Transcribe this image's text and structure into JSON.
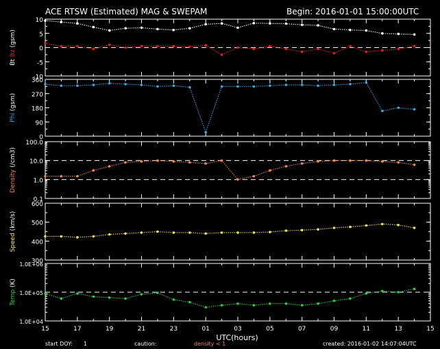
{
  "header": {
    "title": "ACE RTSW (Estimated) MAG & SWEPAM",
    "begin": "Begin: 2016-01-01 15:00:00UTC"
  },
  "footer": {
    "start_doy_label": "start DOY:",
    "start_doy_value": "1",
    "caution_label": "caution:",
    "caution_text": "density < 1",
    "created": "created: 2016-01-02 14:07:04UTC"
  },
  "colors": {
    "bt": "#ffffff",
    "bz": "#e0201a",
    "phi": "#39a6e6",
    "density": "#f08a50",
    "speed": "#f2e05a",
    "temp": "#2ecc40",
    "axis": "#ffffff",
    "background": "#000000"
  },
  "chart_data": [
    {
      "type": "scatter",
      "id": "mag-field",
      "ylabel": [
        "Bt",
        "Bz",
        "(gsm)"
      ],
      "ylim": [
        -10,
        10
      ],
      "yticks": [
        10,
        5,
        0,
        -5,
        -10
      ],
      "reference_lines": [
        0
      ],
      "series": [
        {
          "name": "Bt",
          "x": [
            0,
            1,
            2,
            3,
            4,
            5,
            6,
            7,
            8,
            9,
            10,
            11,
            12,
            13,
            14,
            15,
            16,
            17,
            18,
            19,
            20,
            21,
            22,
            23
          ],
          "values": [
            9.5,
            9.0,
            8.5,
            7.2,
            6.0,
            6.8,
            7.0,
            6.5,
            6.2,
            6.8,
            8.2,
            8.5,
            7.0,
            8.6,
            8.5,
            8.4,
            8.0,
            7.8,
            6.5,
            6.2,
            6.0,
            5.0,
            4.8,
            4.6
          ]
        },
        {
          "name": "Bz",
          "x": [
            0,
            1,
            2,
            3,
            4,
            5,
            6,
            7,
            8,
            9,
            10,
            11,
            12,
            13,
            14,
            15,
            16,
            17,
            18,
            19,
            20,
            21,
            22,
            23
          ],
          "values": [
            1.5,
            0.5,
            0.5,
            -0.5,
            1.0,
            0.0,
            0.5,
            0.5,
            0.5,
            0.3,
            0.8,
            -2.5,
            0.0,
            -0.5,
            0.5,
            -0.5,
            -1.5,
            -0.5,
            -2.0,
            0.5,
            -1.5,
            -1.0,
            -0.5,
            0.5
          ]
        }
      ]
    },
    {
      "type": "scatter",
      "id": "phi",
      "ylabel": [
        "Phi",
        "(gsm)"
      ],
      "ylim": [
        0,
        360
      ],
      "yticks": [
        360,
        270,
        180,
        90,
        0
      ],
      "series": [
        {
          "name": "Phi",
          "x": [
            0,
            1,
            2,
            3,
            4,
            5,
            6,
            7,
            8,
            9,
            10,
            11,
            12,
            13,
            14,
            15,
            16,
            17,
            18,
            19,
            20,
            21,
            22,
            23
          ],
          "values": [
            330,
            320,
            320,
            325,
            335,
            330,
            325,
            315,
            320,
            310,
            25,
            315,
            315,
            315,
            320,
            325,
            325,
            320,
            325,
            330,
            340,
            160,
            180,
            170
          ]
        }
      ]
    },
    {
      "type": "scatter",
      "id": "density",
      "ylabel": [
        "Density",
        "(/cm3)"
      ],
      "scale": "log",
      "ylim": [
        0.1,
        100
      ],
      "yticks": [
        "100.0",
        "10.0",
        "1.0",
        "0.1"
      ],
      "reference_lines": [
        10,
        1
      ],
      "series": [
        {
          "name": "Density",
          "x": [
            0,
            1,
            2,
            3,
            4,
            5,
            6,
            7,
            8,
            9,
            10,
            11,
            12,
            13,
            14,
            15,
            16,
            17,
            18,
            19,
            20,
            21,
            22,
            23
          ],
          "values": [
            1.5,
            1.5,
            1.5,
            3,
            5,
            8,
            9,
            10,
            9,
            8,
            7,
            10,
            1.0,
            1.5,
            3,
            5,
            7,
            9,
            10,
            10,
            10,
            9,
            8,
            6
          ]
        }
      ]
    },
    {
      "type": "scatter",
      "id": "speed",
      "ylabel": [
        "Speed",
        "(km/s)"
      ],
      "ylim": [
        300,
        600
      ],
      "yticks": [
        600,
        500,
        400,
        300
      ],
      "series": [
        {
          "name": "Speed",
          "x": [
            0,
            1,
            2,
            3,
            4,
            5,
            6,
            7,
            8,
            9,
            10,
            11,
            12,
            13,
            14,
            15,
            16,
            17,
            18,
            19,
            20,
            21,
            22,
            23
          ],
          "values": [
            425,
            425,
            420,
            425,
            435,
            440,
            445,
            450,
            445,
            445,
            440,
            445,
            445,
            445,
            448,
            455,
            458,
            462,
            470,
            475,
            482,
            490,
            485,
            470
          ]
        }
      ]
    },
    {
      "type": "scatter",
      "id": "temperature",
      "ylabel": [
        "Temp",
        "(K)"
      ],
      "scale": "log",
      "ylim": [
        10000,
        1000000
      ],
      "yticks": [
        "1.0E+06",
        "1.0E+05",
        "1.0E+04"
      ],
      "reference_lines": [
        100000
      ],
      "series": [
        {
          "name": "Temp",
          "x": [
            0,
            1,
            2,
            3,
            4,
            5,
            6,
            7,
            8,
            9,
            10,
            11,
            12,
            13,
            14,
            15,
            16,
            17,
            18,
            19,
            20,
            21,
            22,
            23
          ],
          "values": [
            90000,
            60000,
            90000,
            70000,
            65000,
            60000,
            85000,
            95000,
            55000,
            45000,
            30000,
            35000,
            40000,
            35000,
            40000,
            40000,
            35000,
            40000,
            50000,
            60000,
            90000,
            110000,
            100000,
            130000
          ]
        }
      ]
    }
  ],
  "x_axis": {
    "label": "UTC(hours)",
    "xlim": [
      0,
      24
    ],
    "ticks": [
      {
        "x": 0,
        "label": "15"
      },
      {
        "x": 2,
        "label": "17"
      },
      {
        "x": 4,
        "label": "19"
      },
      {
        "x": 6,
        "label": "21"
      },
      {
        "x": 8,
        "label": "23"
      },
      {
        "x": 10,
        "label": "01"
      },
      {
        "x": 12,
        "label": "03"
      },
      {
        "x": 14,
        "label": "05"
      },
      {
        "x": 16,
        "label": "07"
      },
      {
        "x": 18,
        "label": "09"
      },
      {
        "x": 20,
        "label": "11"
      },
      {
        "x": 22,
        "label": "13"
      },
      {
        "x": 24,
        "label": "15"
      }
    ]
  }
}
